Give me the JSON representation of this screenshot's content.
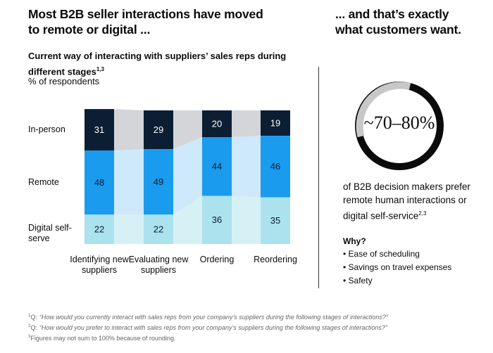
{
  "heading_left": "Most B2B seller interactions have moved to remote or digital ...",
  "heading_right": "... and that’s exactly what customers want.",
  "chart_data": {
    "type": "stacked-bar",
    "title": "Current way of interacting with suppliers’ sales reps during different stages",
    "title_note": "1,3",
    "subtitle": "% of respondents",
    "categories": [
      "Identifying new suppliers",
      "Evaluating new suppliers",
      "Ordering",
      "Reordering"
    ],
    "series": [
      {
        "name": "In-person",
        "color": "#0b1e33",
        "connector_color": "#d3d5d8",
        "label_color": "#ffffff",
        "values": [
          31,
          29,
          20,
          19
        ]
      },
      {
        "name": "Remote",
        "color": "#1a9bee",
        "connector_color": "#cde9fb",
        "label_color": "#0b1e33",
        "values": [
          48,
          49,
          44,
          46
        ]
      },
      {
        "name": "Digital self-serve",
        "color": "#abe2ed",
        "connector_color": "#d6f1f6",
        "label_color": "#0b1e33",
        "values": [
          22,
          22,
          36,
          35
        ]
      }
    ]
  },
  "right": {
    "stat": "~70–80%",
    "text": "of B2B decision makers prefer remote human interactions or digital self-service",
    "text_note": "2,3",
    "why_title": "Why?",
    "reasons": [
      "Ease of scheduling",
      "Savings on travel expenses",
      "Safety"
    ]
  },
  "footnotes": [
    {
      "mark": "1",
      "prefix": "Q:",
      "text": "“How would you currently interact with sales reps from your company’s suppliers during the following stages of interactions?”"
    },
    {
      "mark": "2",
      "prefix": "Q:",
      "text": "“How would you prefer to interact with sales reps from your company’s suppliers during the following stages of interactions?”"
    },
    {
      "mark": "3",
      "prefix": "",
      "text": "Figures may not sum to 100% because of rounding."
    }
  ]
}
